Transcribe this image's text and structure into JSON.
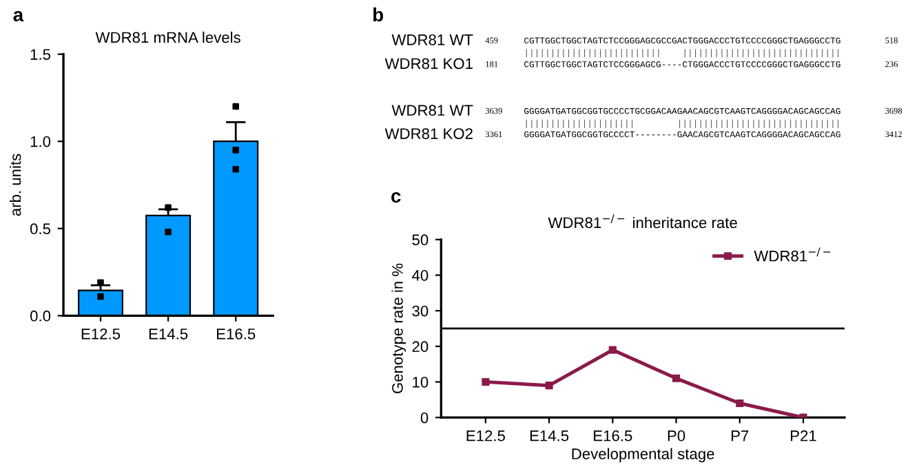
{
  "chart_data": [
    {
      "type": "bar",
      "title": "WDR81 mRNA levels",
      "ylabel": "arb. units",
      "annotations": [
        "a"
      ],
      "categories": [
        "E12.5",
        "E14.5",
        "E16.5"
      ],
      "series": [
        {
          "type": "bar",
          "color": "#0099ff",
          "values": [
            0.145,
            0.575,
            1.0
          ],
          "errors": [
            [
              0.145,
              0.175
            ],
            [
              0.575,
              0.61
            ],
            [
              1.0,
              1.11
            ]
          ]
        },
        {
          "type": "scatter",
          "color": "#000000",
          "x": [
            "E12.5",
            "E12.5",
            "E14.5",
            "E14.5",
            "E16.5",
            "E16.5",
            "E16.5"
          ],
          "values": [
            0.19,
            0.11,
            0.62,
            0.48,
            1.2,
            0.95,
            0.84
          ]
        }
      ],
      "ylim": [
        0,
        1.5
      ],
      "yticks": [
        {
          "value": 0,
          "label": "0.0"
        },
        {
          "value": 0.5,
          "label": "0.5"
        },
        {
          "value": 1.0,
          "label": "1.0"
        },
        {
          "value": 1.5,
          "label": "1.5"
        }
      ],
      "grid": false
    },
    {
      "type": "other",
      "annotations": [
        "b",
        "WDR81 WT",
        "459",
        "CGTTGGCTGGCTAGTCTCCGGGAGCGCCGACTGGGACCCTGTCCCCGGGCTGAGGGCCTG",
        "518",
        "||||||||||||||||||||||||||    ||||||||||||||||||||||||||||||",
        "WDR81 KO1",
        "181",
        "CGTTGGCTGGCTAGTCTCCGGGAGCG----CTGGGACCCTGTCCCCGGGCTGAGGGCCTG",
        "236",
        "WDR81 WT",
        "3639",
        "GGGGATGATGGCGGTGCCCCTGCGGACAAGAACAGCGTCAAGTCAGGGGACAGCAGCCAG",
        "3698",
        "|||||||||||||||||||||        |||||||||||||||||||||||||||||||",
        "WDR81 KO2",
        "3361",
        "GGGGATGATGGCGGTGCCCCT--------GAACAGCGTCAAGTCAGGGGACAGCAGCCAG",
        "3412"
      ]
    },
    {
      "type": "line",
      "title": "WDR81$^{−/−}$ inheritance rate",
      "xlabel": "Developmental stage",
      "ylabel": "Genotype rate in %",
      "annotations": [
        "c"
      ],
      "categories": [
        "E12.5",
        "E14.5",
        "E16.5",
        "P0",
        "P7",
        "P21"
      ],
      "series": [
        {
          "name": "WDR81$^{−/−}$",
          "color": "#8b1a4a",
          "values": [
            10,
            9,
            19,
            11,
            4,
            0
          ]
        }
      ],
      "ylim": [
        0,
        50
      ],
      "yticks": [
        0,
        10,
        20,
        30,
        40,
        50
      ],
      "ref_lines": [
        {
          "axis": "y",
          "value": 25,
          "color": "#000000"
        }
      ],
      "marker": "square",
      "line_style": "solid",
      "grid": false,
      "legend": "top right"
    }
  ]
}
